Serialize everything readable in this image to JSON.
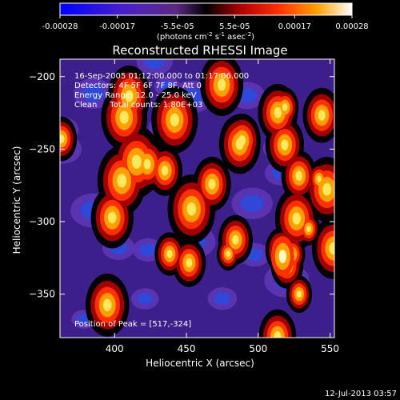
{
  "colorbar": {
    "ticks": [
      "-0.00028",
      "-0.00017",
      "-5.5e-05",
      "5.5e-05",
      "0.00017",
      "0.00028"
    ],
    "unit_main": "(photons cm",
    "unit_exp1": "-2",
    "unit_mid": " s",
    "unit_exp2": "-1",
    "unit_end": " asec",
    "unit_exp3": "-2",
    "unit_close": ")"
  },
  "chart_data": {
    "type": "heatmap",
    "title": "Reconstructed RHESSI Image",
    "xlabel": "Heliocentric X (arcsec)",
    "ylabel": "Heliocentric Y (arcsec)",
    "xlim": [
      362,
      553
    ],
    "ylim": [
      -380,
      -188
    ],
    "xticks": [
      400,
      450,
      500,
      550
    ],
    "yticks": [
      -200,
      -250,
      -300,
      -350
    ],
    "xtick_labels": [
      "400",
      "450",
      "500",
      "550"
    ],
    "ytick_labels": [
      "−200",
      "−250",
      "−300",
      "−350"
    ],
    "colorbar_range": [
      -0.00028,
      0.00028
    ],
    "peak_position": [
      517,
      -324
    ],
    "annotations": [
      "16-Sep-2005 01:12:00.000 to 01:17:06.000",
      "Detectors: 4F 5F 6F 7F 8F, Att 0",
      "Energy Range: 12.0 - 25.0 keV",
      "Clean     Total counts: 1.80E+03",
      "Position of Peak = [517,-324]"
    ]
  },
  "timestamp": "12-Jul-2013 03:57"
}
